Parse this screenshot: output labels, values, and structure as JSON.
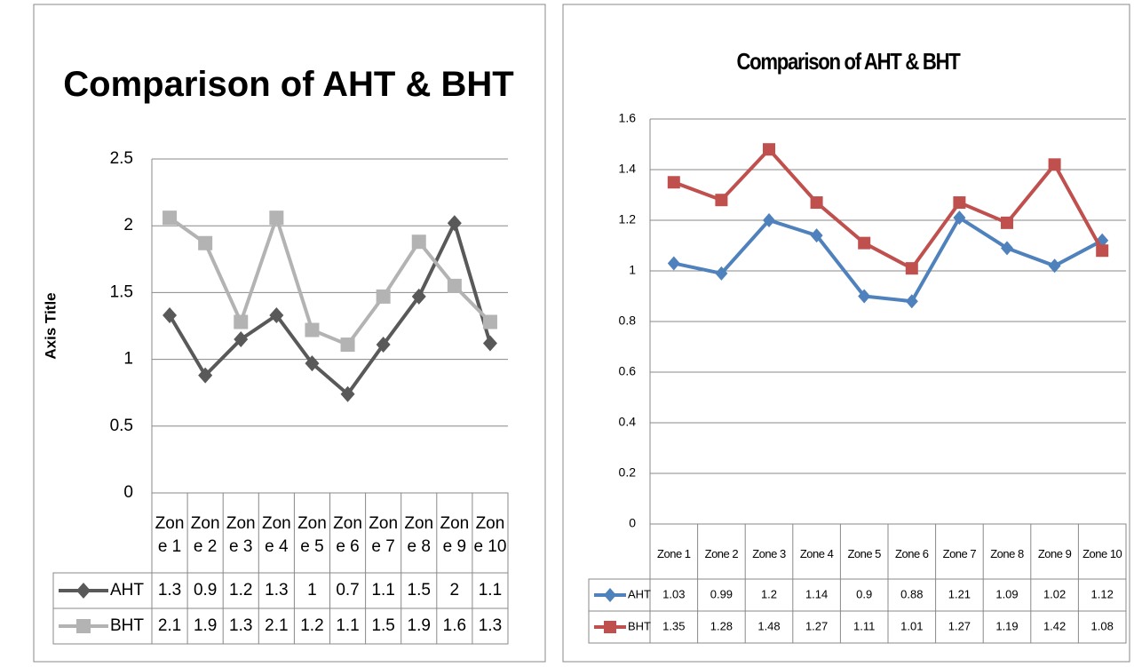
{
  "chart_data": [
    {
      "type": "line",
      "title": "Comparison of AHT & BHT",
      "y_label": "Axis Title",
      "categories": [
        "Zone 1",
        "Zone 2",
        "Zone 3",
        "Zone 4",
        "Zone 5",
        "Zone 6",
        "Zone 7",
        "Zone 8",
        "Zone 9",
        "Zone 10"
      ],
      "series": [
        {
          "name": "AHT",
          "color": "#595959",
          "marker": "diamond",
          "values": [
            1.33,
            0.88,
            1.15,
            1.33,
            0.97,
            0.74,
            1.11,
            1.47,
            2.02,
            1.12
          ],
          "value_labels": [
            "1.3",
            "0.9",
            "1.2",
            "1.3",
            "1",
            "0.7",
            "1.1",
            "1.5",
            "2",
            "1.1"
          ]
        },
        {
          "name": "BHT",
          "color": "#b3b3b3",
          "marker": "square",
          "values": [
            2.06,
            1.87,
            1.28,
            2.06,
            1.22,
            1.11,
            1.47,
            1.88,
            1.55,
            1.28
          ],
          "value_labels": [
            "2.1",
            "1.9",
            "1.3",
            "2.1",
            "1.2",
            "1.1",
            "1.5",
            "1.9",
            "1.6",
            "1.3"
          ]
        }
      ],
      "ylim": [
        0,
        2.5
      ],
      "yticks": [
        0,
        0.5,
        1,
        1.5,
        2,
        2.5
      ],
      "grid": true
    },
    {
      "type": "line",
      "title": "Comparison of AHT & BHT",
      "categories": [
        "Zone 1",
        "Zone 2",
        "Zone 3",
        "Zone 4",
        "Zone 5",
        "Zone 6",
        "Zone 7",
        "Zone 8",
        "Zone 9",
        "Zone 10"
      ],
      "series": [
        {
          "name": "AHT",
          "color": "#4f81bd",
          "marker": "diamond",
          "values": [
            1.03,
            0.99,
            1.2,
            1.14,
            0.9,
            0.88,
            1.21,
            1.09,
            1.02,
            1.12
          ]
        },
        {
          "name": "BHT",
          "color": "#c0504d",
          "marker": "square",
          "values": [
            1.35,
            1.28,
            1.48,
            1.27,
            1.11,
            1.01,
            1.27,
            1.19,
            1.42,
            1.08
          ]
        }
      ],
      "ylim": [
        0,
        1.6
      ],
      "yticks": [
        0,
        0.2,
        0.4,
        0.6,
        0.8,
        1,
        1.2,
        1.4,
        1.6
      ],
      "grid": true
    }
  ]
}
